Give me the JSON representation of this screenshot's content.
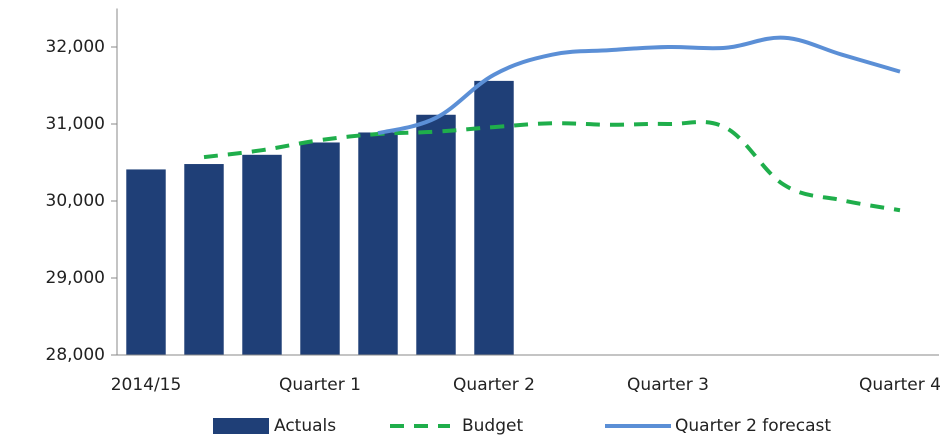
{
  "chart_data": {
    "type": "bar_line",
    "categories": [
      "2014/15",
      null,
      null,
      "Quarter 1",
      null,
      null,
      "Quarter 2",
      null,
      null,
      "Quarter 3",
      null,
      null,
      null,
      "Quarter 4"
    ],
    "series": [
      {
        "name": "Actuals",
        "type": "bar",
        "color": "#1f3f77",
        "values": [
          30410,
          30480,
          30600,
          30760,
          30890,
          31120,
          31560,
          null,
          null,
          null,
          null,
          null,
          null,
          null
        ]
      },
      {
        "name": "Budget",
        "type": "line",
        "dashed": true,
        "color": "#1fae4b",
        "values": [
          null,
          30570,
          30660,
          30790,
          30870,
          30900,
          30960,
          31010,
          30990,
          31000,
          30950,
          30210,
          30010,
          29880
        ]
      },
      {
        "name": "Quarter 2 forecast",
        "type": "line",
        "dashed": false,
        "color": "#5b8fd6",
        "values": [
          null,
          null,
          null,
          null,
          30880,
          31080,
          31640,
          31900,
          31960,
          32000,
          31990,
          32120,
          31900,
          31680
        ]
      }
    ],
    "ylim": [
      28000,
      32500
    ],
    "yticks": [
      {
        "value": 28000,
        "label": "28,000"
      },
      {
        "value": 29000,
        "label": "29,000"
      },
      {
        "value": 30000,
        "label": "30,000"
      },
      {
        "value": 31000,
        "label": "31,000"
      },
      {
        "value": 32000,
        "label": "32,000"
      }
    ],
    "legend": "bottom"
  }
}
